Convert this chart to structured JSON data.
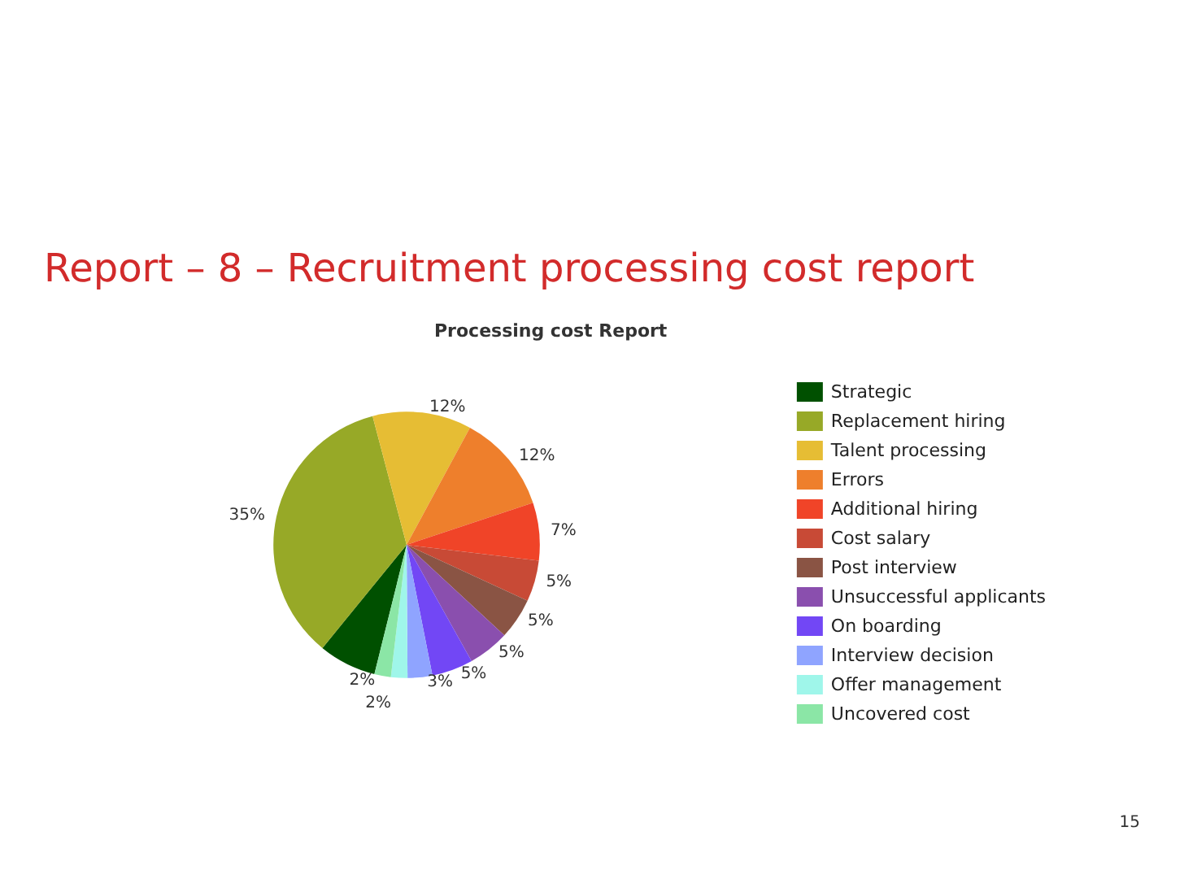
{
  "chart_data": {
    "type": "pie",
    "title": "Report – 8 – Recruitment processing cost report",
    "subtitle": "Processing cost Report",
    "categories": [
      "Strategic",
      "Replacement hiring",
      "Talent processing",
      "Errors",
      "Additional hiring",
      "Cost salary",
      "Post interview",
      "Unsuccessful applicants",
      "On boarding",
      "Interview decision",
      "Offer management",
      "Uncovered cost"
    ],
    "values": [
      7,
      35,
      12,
      12,
      7,
      5,
      5,
      5,
      5,
      3,
      2,
      2
    ],
    "value_labels": [
      null,
      "35%",
      "12%",
      "12%",
      "7%",
      "5%",
      "5%",
      "5%",
      "5%",
      "3%",
      "2%",
      "2%"
    ],
    "colors": [
      "#005000",
      "#97a927",
      "#e6bd34",
      "#ee7f2c",
      "#f04428",
      "#c84a36",
      "#8a5444",
      "#8a4fae",
      "#7247f5",
      "#8fa4ff",
      "#9ff6ea",
      "#8be6a6"
    ],
    "legend": "right",
    "annotations": [
      "15"
    ]
  }
}
